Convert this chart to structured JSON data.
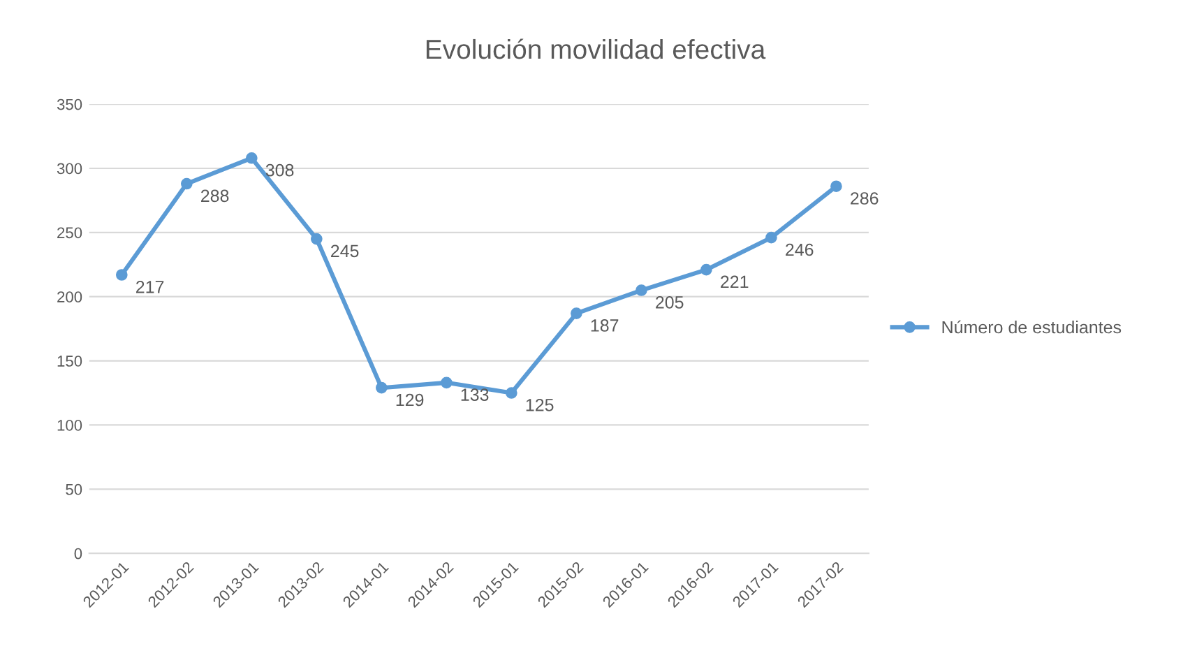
{
  "chart_data": {
    "type": "line",
    "title": "Evolución movilidad efectiva",
    "categories": [
      "2012-01",
      "2012-02",
      "2013-01",
      "2013-02",
      "2014-01",
      "2014-02",
      "2015-01",
      "2015-02",
      "2016-01",
      "2016-02",
      "2017-01",
      "2017-02"
    ],
    "series": [
      {
        "name": "Número de estudiantes",
        "color": "#5b9bd5",
        "values": [
          217,
          288,
          308,
          245,
          129,
          133,
          125,
          187,
          205,
          221,
          246,
          286
        ]
      }
    ],
    "ylim": [
      0,
      350
    ],
    "yticks": [
      0,
      50,
      100,
      150,
      200,
      250,
      300,
      350
    ],
    "grid": "y",
    "legend": "right",
    "marker": "circle",
    "line_style": "solid",
    "data_labels": true
  }
}
